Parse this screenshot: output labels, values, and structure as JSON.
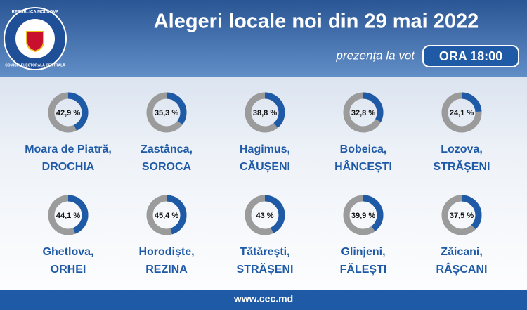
{
  "header": {
    "title": "Alegeri locale noi din 29 mai 2022",
    "subtitle": "prezența la vot",
    "badge": "ORA 18:00"
  },
  "logo": {
    "top": "REPUBLICA MOLDOVA",
    "bottom": "COMISIA ELECTORALĂ CENTRALĂ"
  },
  "footer": "www.cec.md",
  "chart_data": [
    {
      "type": "donut",
      "title": "Moara de Piatră,",
      "subtitle": "DROCHIA",
      "values": [
        42.9
      ],
      "value_labels": [
        "42,9 %"
      ],
      "ylim": [
        0,
        100
      ],
      "color": "#1f5aa6"
    },
    {
      "type": "donut",
      "title": "Zastânca,",
      "subtitle": "SOROCA",
      "values": [
        35.3
      ],
      "value_labels": [
        "35,3 %"
      ],
      "ylim": [
        0,
        100
      ],
      "color": "#1f5aa6"
    },
    {
      "type": "donut",
      "title": "Hagimus,",
      "subtitle": "CĂUȘENI",
      "values": [
        38.8
      ],
      "value_labels": [
        "38,8 %"
      ],
      "ylim": [
        0,
        100
      ],
      "color": "#1f5aa6"
    },
    {
      "type": "donut",
      "title": "Bobeica,",
      "subtitle": "HÂNCEȘTI",
      "values": [
        32.8
      ],
      "value_labels": [
        "32,8 %"
      ],
      "ylim": [
        0,
        100
      ],
      "color": "#1f5aa6"
    },
    {
      "type": "donut",
      "title": "Lozova,",
      "subtitle": "STRĂȘENI",
      "values": [
        24.1
      ],
      "value_labels": [
        "24,1 %"
      ],
      "ylim": [
        0,
        100
      ],
      "color": "#1f5aa6"
    },
    {
      "type": "donut",
      "title": "Ghetlova,",
      "subtitle": "ORHEI",
      "values": [
        44.1
      ],
      "value_labels": [
        "44,1 %"
      ],
      "ylim": [
        0,
        100
      ],
      "color": "#1f5aa6"
    },
    {
      "type": "donut",
      "title": "Horodiște,",
      "subtitle": "REZINA",
      "values": [
        45.4
      ],
      "value_labels": [
        "45,4 %"
      ],
      "ylim": [
        0,
        100
      ],
      "color": "#1f5aa6"
    },
    {
      "type": "donut",
      "title": "Tătărești,",
      "subtitle": "STRĂȘENI",
      "values": [
        43
      ],
      "value_labels": [
        "43 %"
      ],
      "ylim": [
        0,
        100
      ],
      "color": "#1f5aa6"
    },
    {
      "type": "donut",
      "title": "Glinjeni,",
      "subtitle": "FĂLEȘTI",
      "values": [
        39.9
      ],
      "value_labels": [
        "39,9 %"
      ],
      "ylim": [
        0,
        100
      ],
      "color": "#1f5aa6"
    },
    {
      "type": "donut",
      "title": "Zăicani,",
      "subtitle": "RÂȘCANI",
      "values": [
        37.5
      ],
      "value_labels": [
        "37,5 %"
      ],
      "ylim": [
        0,
        100
      ],
      "color": "#1f5aa6"
    }
  ]
}
